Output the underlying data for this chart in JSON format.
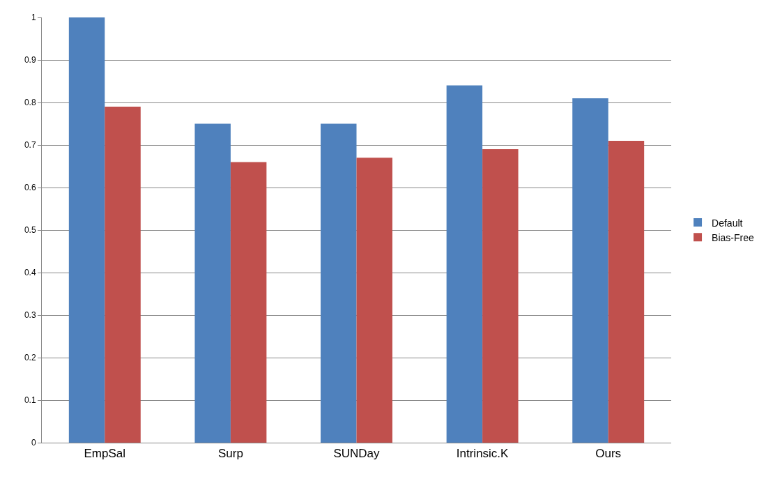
{
  "chart_data": {
    "type": "bar",
    "categories": [
      "EmpSal",
      "Surp",
      "SUNDay",
      "Intrinsic.K",
      "Ours"
    ],
    "series": [
      {
        "name": "Default",
        "color": "#4f81bd",
        "values": [
          1.0,
          0.75,
          0.75,
          0.84,
          0.81
        ]
      },
      {
        "name": "Bias-Free",
        "color": "#c0504d",
        "values": [
          0.79,
          0.66,
          0.67,
          0.69,
          0.71
        ]
      }
    ],
    "ylim": [
      0,
      1
    ],
    "yticks": [
      0,
      0.1,
      0.2,
      0.3,
      0.4,
      0.5,
      0.6,
      0.7,
      0.8,
      0.9,
      1
    ],
    "grid": "y",
    "legend": "right"
  }
}
